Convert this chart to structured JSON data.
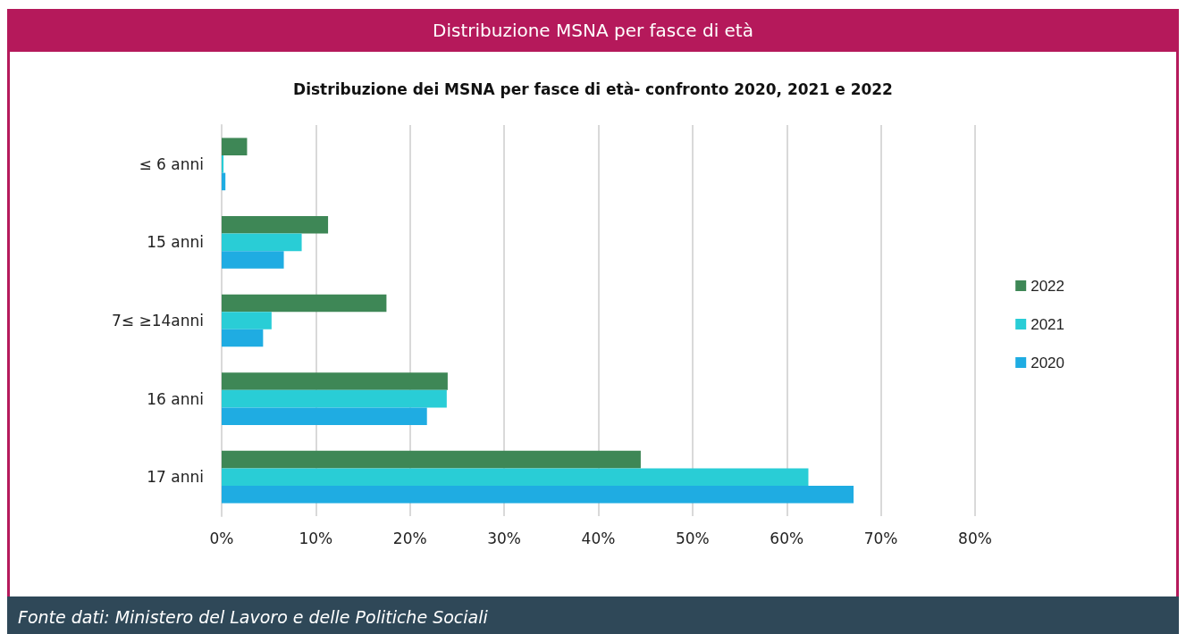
{
  "chart_data": {
    "type": "bar",
    "orientation": "horizontal",
    "title": "Distribuzione MSNA per fasce di età",
    "subtitle": "Distribuzione dei MSNA per fasce di età- confronto 2020, 2021 e 2022",
    "annotations": [
      "Fonte dati: Ministero del Lavoro e delle Politiche Sociali"
    ],
    "categories": [
      "≤ 6 anni",
      "15 anni",
      "7≤ ≥14anni",
      "16 anni",
      "17 anni"
    ],
    "series": [
      {
        "name": "2022",
        "color": "#3e8756",
        "values": [
          2.7,
          11.3,
          17.5,
          24.0,
          44.5
        ]
      },
      {
        "name": "2021",
        "color": "#29cdd6",
        "values": [
          0.2,
          8.5,
          5.3,
          23.9,
          62.3
        ]
      },
      {
        "name": "2020",
        "color": "#1facE2",
        "values": [
          0.4,
          6.6,
          4.4,
          21.8,
          67.1
        ]
      }
    ],
    "xlim": [
      0,
      80
    ],
    "xticks": [
      {
        "value": 0,
        "label": "0%"
      },
      {
        "value": 10,
        "label": "10%"
      },
      {
        "value": 20,
        "label": "20%"
      },
      {
        "value": 30,
        "label": "30%"
      },
      {
        "value": 40,
        "label": "40%"
      },
      {
        "value": 50,
        "label": "50%"
      },
      {
        "value": 60,
        "label": "60%"
      },
      {
        "value": 70,
        "label": "70%"
      },
      {
        "value": 80,
        "label": "80%"
      }
    ],
    "grid": "x",
    "legend": "right"
  }
}
